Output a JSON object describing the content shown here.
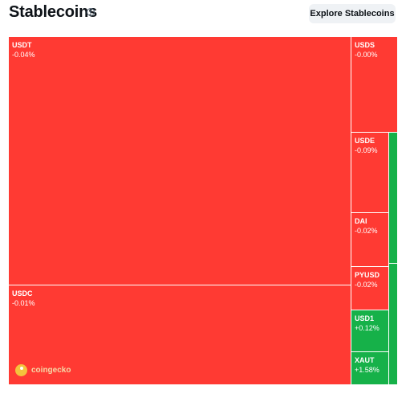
{
  "header": {
    "title": "Stablecoins",
    "explore_label": "Explore Stablecoins"
  },
  "colors": {
    "negative": "#ff3a33",
    "positive": "#16b149"
  },
  "tiles": [
    {
      "symbol": "USDT",
      "change": "-0.04%"
    },
    {
      "symbol": "USDC",
      "change": "-0.01%"
    },
    {
      "symbol": "USDS",
      "change": "-0.00%"
    },
    {
      "symbol": "USDE",
      "change": "-0.09%"
    },
    {
      "symbol": "DAI",
      "change": "-0.02%"
    },
    {
      "symbol": "PYUSD",
      "change": "-0.02%"
    },
    {
      "symbol": "USD1",
      "change": "+0.12%"
    },
    {
      "symbol": "XAUT",
      "change": "+1.58%"
    }
  ],
  "branding": {
    "logo_text": "coingecko"
  }
}
